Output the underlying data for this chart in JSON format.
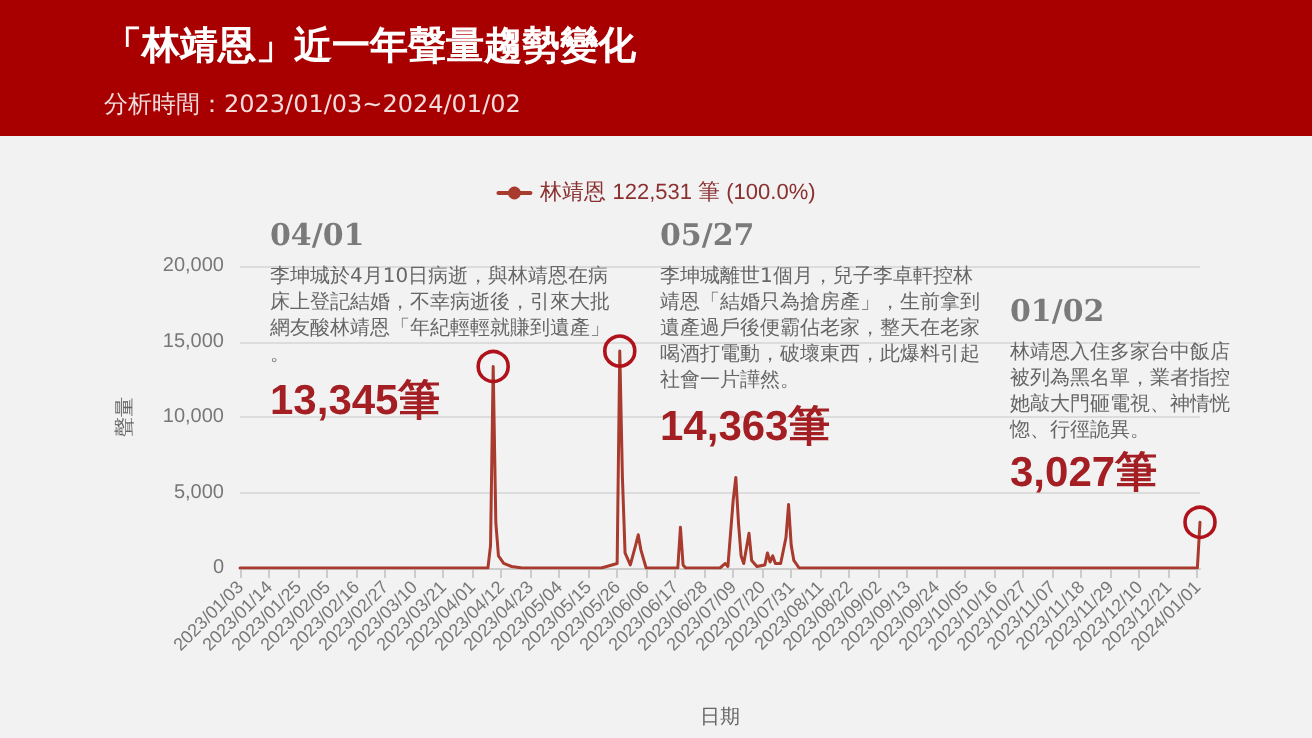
{
  "chart_data": {
    "type": "line",
    "title": "「林靖恩」近一年聲量趨勢變化",
    "subtitle": "分析時間：2023/01/03~2024/01/02",
    "xlabel": "日期",
    "ylabel": "聲量",
    "x": [
      "2023-01-03",
      "2023-04-07",
      "2023-04-08",
      "2023-04-09",
      "2023-04-10",
      "2023-04-11",
      "2023-04-13",
      "2023-04-16",
      "2023-04-20",
      "2023-05-20",
      "2023-05-24",
      "2023-05-26",
      "2023-05-27",
      "2023-05-28",
      "2023-05-29",
      "2023-05-31",
      "2023-06-02",
      "2023-06-03",
      "2023-06-04",
      "2023-06-06",
      "2023-06-18",
      "2023-06-19",
      "2023-06-20",
      "2023-06-21",
      "2023-07-04",
      "2023-07-06",
      "2023-07-07",
      "2023-07-09",
      "2023-07-10",
      "2023-07-11",
      "2023-07-12",
      "2023-07-13",
      "2023-07-15",
      "2023-07-16",
      "2023-07-18",
      "2023-07-21",
      "2023-07-22",
      "2023-07-23",
      "2023-07-24",
      "2023-07-25",
      "2023-07-27",
      "2023-07-29",
      "2023-07-30",
      "2023-07-31",
      "2023-08-01",
      "2023-08-03",
      "2024-01-01",
      "2024-01-02"
    ],
    "series": [
      {
        "name": "林靖恩 122,531 筆 (100.0%)",
        "color": "#a83a2e",
        "values": [
          0,
          0,
          1500,
          13345,
          3000,
          800,
          300,
          100,
          0,
          0,
          200,
          300,
          14363,
          6000,
          1000,
          200,
          1500,
          2200,
          1200,
          0,
          0,
          2700,
          200,
          0,
          0,
          300,
          100,
          4500,
          6000,
          3000,
          800,
          300,
          2300,
          500,
          100,
          200,
          1000,
          400,
          800,
          300,
          300,
          2000,
          4200,
          1500,
          500,
          0,
          0,
          3027
        ]
      }
    ],
    "xlim": [
      "2023-01-03",
      "2024-01-02"
    ],
    "xticks": [
      {
        "value": "2023-01-03",
        "label": "2023/01/03"
      },
      {
        "value": "2023-01-14",
        "label": "2023/01/14"
      },
      {
        "value": "2023-01-25",
        "label": "2023/01/25"
      },
      {
        "value": "2023-02-05",
        "label": "2023/02/05"
      },
      {
        "value": "2023-02-16",
        "label": "2023/02/16"
      },
      {
        "value": "2023-02-27",
        "label": "2023/02/27"
      },
      {
        "value": "2023-03-10",
        "label": "2023/03/10"
      },
      {
        "value": "2023-03-21",
        "label": "2023/03/21"
      },
      {
        "value": "2023-04-01",
        "label": "2023/04/01"
      },
      {
        "value": "2023-04-12",
        "label": "2023/04/12"
      },
      {
        "value": "2023-04-23",
        "label": "2023/04/23"
      },
      {
        "value": "2023-05-04",
        "label": "2023/05/04"
      },
      {
        "value": "2023-05-15",
        "label": "2023/05/15"
      },
      {
        "value": "2023-05-26",
        "label": "2023/05/26"
      },
      {
        "value": "2023-06-06",
        "label": "2023/06/06"
      },
      {
        "value": "2023-06-17",
        "label": "2023/06/17"
      },
      {
        "value": "2023-06-28",
        "label": "2023/06/28"
      },
      {
        "value": "2023-07-09",
        "label": "2023/07/09"
      },
      {
        "value": "2023-07-20",
        "label": "2023/07/20"
      },
      {
        "value": "2023-07-31",
        "label": "2023/07/31"
      },
      {
        "value": "2023-08-11",
        "label": "2023/08/11"
      },
      {
        "value": "2023-08-22",
        "label": "2023/08/22"
      },
      {
        "value": "2023-09-02",
        "label": "2023/09/02"
      },
      {
        "value": "2023-09-13",
        "label": "2023/09/13"
      },
      {
        "value": "2023-09-24",
        "label": "2023/09/24"
      },
      {
        "value": "2023-10-05",
        "label": "2023/10/05"
      },
      {
        "value": "2023-10-16",
        "label": "2023/10/16"
      },
      {
        "value": "2023-10-27",
        "label": "2023/10/27"
      },
      {
        "value": "2023-11-07",
        "label": "2023/11/07"
      },
      {
        "value": "2023-11-18",
        "label": "2023/11/18"
      },
      {
        "value": "2023-11-29",
        "label": "2023/11/29"
      },
      {
        "value": "2023-12-10",
        "label": "2023/12/10"
      },
      {
        "value": "2023-12-21",
        "label": "2023/12/21"
      },
      {
        "value": "2024-01-01",
        "label": "2024/01/01"
      }
    ],
    "ylim": [
      0,
      20000
    ],
    "yticks": [
      0,
      {
        "value": 5000,
        "label": "5,000"
      },
      {
        "value": 10000,
        "label": "10,000"
      },
      {
        "value": 15000,
        "label": "15,000"
      },
      {
        "value": 20000,
        "label": "20,000"
      }
    ],
    "grid": "y",
    "legend": "top",
    "marker": "none",
    "line_style": "solid",
    "annotations": [
      "04/01",
      "李坤城於4月10日病逝，與林靖恩在病床上登記結婚，不幸病逝後，引來大批網友酸林靖恩「年紀輕輕就賺到遺產」。",
      {
        "text": "13,345筆",
        "x": "2023-04-09",
        "y": 13345
      },
      "05/27",
      "李坤城離世1個月，兒子李卓軒控林靖恩「結婚只為搶房產」，生前拿到遺產過戶後便霸佔老家，整天在老家喝酒打電動，破壞東西，此爆料引起社會一片譁然。",
      {
        "text": "14,363筆",
        "x": "2023-05-27",
        "y": 14363
      },
      "01/02",
      "林靖恩入住多家台中飯店被列為黑名單，業者指控她敲大門砸電視、神情恍惚、行徑詭異。",
      {
        "text": "3,027筆",
        "x": "2024-01-02",
        "y": 3027
      }
    ]
  }
}
